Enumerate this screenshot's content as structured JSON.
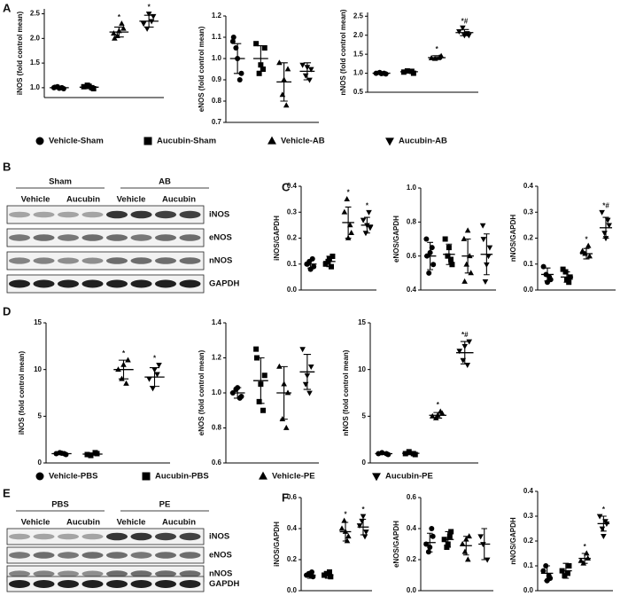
{
  "panels": [
    "A",
    "B",
    "C",
    "D",
    "E",
    "F"
  ],
  "legends": [
    {
      "items": [
        "Vehicle-Sham",
        "Aucubin-Sham",
        "Vehicle-AB",
        "Aucubin-AB"
      ],
      "markers": [
        "circle",
        "square",
        "triangle",
        "triangle-down"
      ]
    },
    {
      "items": [
        "Vehicle-PBS",
        "Aucubin-PBS",
        "Vehicle-PE",
        "Aucubin-PE"
      ],
      "markers": [
        "circle",
        "square",
        "triangle",
        "triangle-down"
      ]
    }
  ],
  "blots": [
    {
      "groups": [
        "Sham",
        "AB"
      ],
      "lanes": [
        "Vehicle",
        "Aucubin",
        "Vehicle",
        "Aucubin"
      ],
      "rows": [
        "iNOS",
        "eNOS",
        "nNOS",
        "GAPDH"
      ]
    },
    {
      "groups": [
        "PBS",
        "PE"
      ],
      "lanes": [
        "Vehicle",
        "Aucubin",
        "Vehicle",
        "Aucubin"
      ],
      "rows": [
        "iNOS",
        "eNOS",
        "nNOS",
        "GAPDH"
      ]
    }
  ],
  "chart_data": [
    {
      "type": "dot",
      "ylabel": "iNOS (fold control mean)",
      "ylim": [
        0.8,
        2.6
      ],
      "yticks": [
        {
          "value": 1,
          "label": "1.0"
        },
        1.5,
        {
          "value": 2,
          "label": "2.0"
        },
        2.5
      ],
      "series": [
        {
          "marker": "circle",
          "color": "#000",
          "values": [
            1.0,
            0.98,
            1.02,
            1.0,
            0.99,
            1.01
          ],
          "mean": 1.0,
          "sd": 0.02
        },
        {
          "marker": "square",
          "color": "#000",
          "values": [
            1.02,
            0.98,
            1.05,
            1.0,
            1.03
          ],
          "mean": 1.01,
          "sd": 0.03
        },
        {
          "marker": "triangle",
          "color": "#000",
          "values": [
            2.1,
            2.2,
            2.05,
            2.3,
            2.15,
            2.0
          ],
          "mean": 2.13,
          "sd": 0.1,
          "annotation": "*"
        },
        {
          "marker": "triangle-down",
          "color": "#000",
          "values": [
            2.3,
            2.45,
            2.2,
            2.35,
            2.5
          ],
          "mean": 2.35,
          "sd": 0.12,
          "annotation": "*"
        }
      ]
    },
    {
      "type": "dot",
      "ylabel": "eNOS (fold control mean)",
      "ylim": [
        0.7,
        1.2
      ],
      "yticks": [
        0.7,
        0.8,
        0.9,
        {
          "value": 1,
          "label": "1.0"
        },
        1.1,
        1.2
      ],
      "series": [
        {
          "marker": "circle",
          "color": "#000",
          "values": [
            1.08,
            0.93,
            1.05,
            0.9,
            1.0,
            1.1
          ],
          "mean": 1.0,
          "sd": 0.07
        },
        {
          "marker": "square",
          "color": "#000",
          "values": [
            1.07,
            1.05,
            0.93,
            0.95,
            0.97
          ],
          "mean": 1.0,
          "sd": 0.06
        },
        {
          "marker": "triangle",
          "color": "#000",
          "values": [
            0.98,
            0.95,
            0.83,
            0.78,
            0.9
          ],
          "mean": 0.89,
          "sd": 0.09
        },
        {
          "marker": "triangle-down",
          "color": "#000",
          "values": [
            0.97,
            0.95,
            0.92,
            0.9,
            0.96
          ],
          "mean": 0.94,
          "sd": 0.04
        }
      ]
    },
    {
      "type": "dot",
      "ylabel": "nNOS (fold control mean)",
      "ylim": [
        0.5,
        2.6
      ],
      "yticks": [
        0.5,
        {
          "value": 1,
          "label": "1.0"
        },
        1.5,
        {
          "value": 2,
          "label": "2.0"
        },
        2.5
      ],
      "series": [
        {
          "marker": "circle",
          "color": "#000",
          "values": [
            1.0,
            0.98,
            1.02,
            1.0,
            0.99
          ],
          "mean": 1.0,
          "sd": 0.02
        },
        {
          "marker": "square",
          "color": "#000",
          "values": [
            1.03,
            1.0,
            1.06,
            1.05
          ],
          "mean": 1.04,
          "sd": 0.03
        },
        {
          "marker": "triangle",
          "color": "#000",
          "values": [
            1.4,
            1.45,
            1.38,
            1.42
          ],
          "mean": 1.41,
          "sd": 0.05,
          "annotation": "*"
        },
        {
          "marker": "triangle-down",
          "color": "#000",
          "values": [
            2.1,
            2.0,
            2.2,
            2.05,
            2.0
          ],
          "mean": 2.07,
          "sd": 0.08,
          "annotation": "*#"
        }
      ]
    },
    {
      "type": "dot",
      "ylabel": "iNOS/GAPDH",
      "ylim": [
        0,
        0.4
      ],
      "yticks": [
        {
          "value": 0,
          "label": "0.0"
        },
        0.1,
        0.2,
        0.3,
        0.4
      ],
      "series": [
        {
          "marker": "circle",
          "color": "#000",
          "values": [
            0.1,
            0.09,
            0.11,
            0.12,
            0.08,
            0.1
          ],
          "mean": 0.1,
          "sd": 0.015
        },
        {
          "marker": "square",
          "color": "#000",
          "values": [
            0.1,
            0.13,
            0.11,
            0.09,
            0.12
          ],
          "mean": 0.11,
          "sd": 0.02
        },
        {
          "marker": "triangle",
          "color": "#000",
          "values": [
            0.3,
            0.22,
            0.35,
            0.25,
            0.2
          ],
          "mean": 0.26,
          "sd": 0.06,
          "annotation": "*"
        },
        {
          "marker": "triangle-down",
          "color": "#000",
          "values": [
            0.27,
            0.24,
            0.22,
            0.3,
            0.25
          ],
          "mean": 0.25,
          "sd": 0.03,
          "annotation": "*"
        }
      ]
    },
    {
      "type": "dot",
      "ylabel": "eNOS/GAPDH",
      "ylim": [
        0.4,
        1.0
      ],
      "yticks": [
        0.4,
        0.6,
        0.8,
        {
          "value": 1,
          "label": "1.0"
        }
      ],
      "series": [
        {
          "marker": "circle",
          "color": "#000",
          "values": [
            0.7,
            0.55,
            0.5,
            0.65,
            0.62,
            0.6
          ],
          "mean": 0.6,
          "sd": 0.08
        },
        {
          "marker": "square",
          "color": "#000",
          "values": [
            0.7,
            0.55,
            0.6,
            0.58,
            0.65
          ],
          "mean": 0.61,
          "sd": 0.06
        },
        {
          "marker": "triangle",
          "color": "#000",
          "values": [
            0.7,
            0.5,
            0.55,
            0.6,
            0.75,
            0.45
          ],
          "mean": 0.6,
          "sd": 0.1
        },
        {
          "marker": "triangle-down",
          "color": "#000",
          "values": [
            0.78,
            0.65,
            0.45,
            0.6,
            0.55,
            0.7
          ],
          "mean": 0.61,
          "sd": 0.12
        }
      ]
    },
    {
      "type": "dot",
      "ylabel": "nNOS/GAPDH",
      "ylim": [
        0,
        0.4
      ],
      "yticks": [
        {
          "value": 0,
          "label": "0.0"
        },
        0.1,
        0.2,
        0.3,
        0.4
      ],
      "series": [
        {
          "marker": "circle",
          "color": "#000",
          "values": [
            0.09,
            0.04,
            0.06,
            0.05,
            0.03
          ],
          "mean": 0.06,
          "sd": 0.025
        },
        {
          "marker": "square",
          "color": "#000",
          "values": [
            0.08,
            0.05,
            0.07,
            0.03,
            0.04
          ],
          "mean": 0.05,
          "sd": 0.02
        },
        {
          "marker": "triangle",
          "color": "#000",
          "values": [
            0.15,
            0.13,
            0.14,
            0.17
          ],
          "mean": 0.14,
          "sd": 0.02,
          "annotation": "*"
        },
        {
          "marker": "triangle-down",
          "color": "#000",
          "values": [
            0.3,
            0.25,
            0.22,
            0.27,
            0.2
          ],
          "mean": 0.24,
          "sd": 0.04,
          "annotation": "*#"
        }
      ]
    },
    {
      "type": "dot",
      "ylabel": "iNOS (fold control mean)",
      "ylim": [
        0,
        15
      ],
      "yticks": [
        0,
        5,
        10,
        15
      ],
      "series": [
        {
          "marker": "circle",
          "color": "#000",
          "values": [
            1,
            0.9,
            1.1,
            1,
            1.05
          ],
          "mean": 1,
          "sd": 0.1
        },
        {
          "marker": "square",
          "color": "#000",
          "values": [
            0.9,
            1,
            0.8,
            1.1
          ],
          "mean": 0.95,
          "sd": 0.12
        },
        {
          "marker": "triangle",
          "color": "#000",
          "values": [
            10,
            11,
            9,
            8.5,
            10.5
          ],
          "mean": 10,
          "sd": 1,
          "annotation": "*"
        },
        {
          "marker": "triangle-down",
          "color": "#000",
          "values": [
            9,
            10.5,
            8,
            9.5,
            10
          ],
          "mean": 9.2,
          "sd": 1,
          "annotation": "*"
        }
      ]
    },
    {
      "type": "dot",
      "ylabel": "eNOS (fold control mean)",
      "ylim": [
        0.6,
        1.4
      ],
      "yticks": [
        0.6,
        0.8,
        {
          "value": 1,
          "label": "1.0"
        },
        1.2,
        1.4
      ],
      "series": [
        {
          "marker": "circle",
          "color": "#000",
          "values": [
            1.0,
            0.98,
            1.02,
            0.97,
            1.03
          ],
          "mean": 1,
          "sd": 0.03
        },
        {
          "marker": "square",
          "color": "#000",
          "values": [
            1.25,
            1.1,
            0.95,
            0.9,
            1.05,
            1.2
          ],
          "mean": 1.07,
          "sd": 0.13
        },
        {
          "marker": "triangle",
          "color": "#000",
          "values": [
            1.15,
            1.0,
            0.85,
            0.8,
            1.05
          ],
          "mean": 1.0,
          "sd": 0.15
        },
        {
          "marker": "triangle-down",
          "color": "#000",
          "values": [
            1.25,
            1.15,
            1.05,
            1.0,
            1.1
          ],
          "mean": 1.12,
          "sd": 0.1
        }
      ]
    },
    {
      "type": "dot",
      "ylabel": "nNOS (fold control mean)",
      "ylim": [
        0,
        15
      ],
      "yticks": [
        0,
        5,
        10,
        15
      ],
      "series": [
        {
          "marker": "circle",
          "color": "#000",
          "values": [
            1,
            0.9,
            1.1,
            1
          ],
          "mean": 1,
          "sd": 0.1
        },
        {
          "marker": "square",
          "color": "#000",
          "values": [
            1,
            0.9,
            1.2,
            1
          ],
          "mean": 1.03,
          "sd": 0.15
        },
        {
          "marker": "triangle",
          "color": "#000",
          "values": [
            5,
            5.3,
            4.8,
            5.5,
            5.1
          ],
          "mean": 5.1,
          "sd": 0.3,
          "annotation": "*"
        },
        {
          "marker": "triangle-down",
          "color": "#000",
          "values": [
            12,
            13,
            11,
            10.5,
            12.5
          ],
          "mean": 11.8,
          "sd": 1.2,
          "annotation": "*#"
        }
      ]
    },
    {
      "type": "dot",
      "ylabel": "iNOS/GAPDH",
      "ylim": [
        0,
        0.6
      ],
      "yticks": [
        {
          "value": 0,
          "label": "0.0"
        },
        0.2,
        0.4,
        0.6
      ],
      "series": [
        {
          "marker": "circle",
          "color": "#000",
          "values": [
            0.1,
            0.09,
            0.11,
            0.12,
            0.1
          ],
          "mean": 0.1,
          "sd": 0.02
        },
        {
          "marker": "square",
          "color": "#000",
          "values": [
            0.1,
            0.09,
            0.11,
            0.12
          ],
          "mean": 0.1,
          "sd": 0.02
        },
        {
          "marker": "triangle",
          "color": "#000",
          "values": [
            0.4,
            0.35,
            0.45,
            0.32,
            0.38
          ],
          "mean": 0.38,
          "sd": 0.06,
          "annotation": "*"
        },
        {
          "marker": "triangle-down",
          "color": "#000",
          "values": [
            0.42,
            0.38,
            0.45,
            0.35,
            0.48
          ],
          "mean": 0.41,
          "sd": 0.05,
          "annotation": "*"
        }
      ]
    },
    {
      "type": "dot",
      "ylabel": "eNOS/GAPDH",
      "ylim": [
        0,
        0.6
      ],
      "yticks": [
        {
          "value": 0,
          "label": "0.0"
        },
        0.2,
        0.4,
        0.6
      ],
      "series": [
        {
          "marker": "circle",
          "color": "#000",
          "values": [
            0.3,
            0.35,
            0.25,
            0.4,
            0.28
          ],
          "mean": 0.31,
          "sd": 0.06
        },
        {
          "marker": "square",
          "color": "#000",
          "values": [
            0.33,
            0.38,
            0.28,
            0.35,
            0.3
          ],
          "mean": 0.33,
          "sd": 0.05
        },
        {
          "marker": "triangle",
          "color": "#000",
          "values": [
            0.3,
            0.35,
            0.25,
            0.2,
            0.33
          ],
          "mean": 0.29,
          "sd": 0.06
        },
        {
          "marker": "triangle-down",
          "color": "#000",
          "values": [
            0.35,
            0.2,
            0.3
          ],
          "mean": 0.3,
          "sd": 0.1
        }
      ]
    },
    {
      "type": "dot",
      "ylabel": "nNOS/GAPDH",
      "ylim": [
        0,
        0.4
      ],
      "yticks": [
        {
          "value": 0,
          "label": "0.0"
        },
        0.1,
        0.2,
        0.3,
        0.4
      ],
      "series": [
        {
          "marker": "circle",
          "color": "#000",
          "values": [
            0.08,
            0.05,
            0.1,
            0.06,
            0.04
          ],
          "mean": 0.07,
          "sd": 0.03
        },
        {
          "marker": "square",
          "color": "#000",
          "values": [
            0.08,
            0.1,
            0.06,
            0.07
          ],
          "mean": 0.08,
          "sd": 0.03
        },
        {
          "marker": "triangle",
          "color": "#000",
          "values": [
            0.12,
            0.13,
            0.11,
            0.15
          ],
          "mean": 0.13,
          "sd": 0.02,
          "annotation": "*"
        },
        {
          "marker": "triangle-down",
          "color": "#000",
          "values": [
            0.3,
            0.27,
            0.25,
            0.28,
            0.22
          ],
          "mean": 0.27,
          "sd": 0.03,
          "annotation": "*"
        }
      ]
    }
  ]
}
